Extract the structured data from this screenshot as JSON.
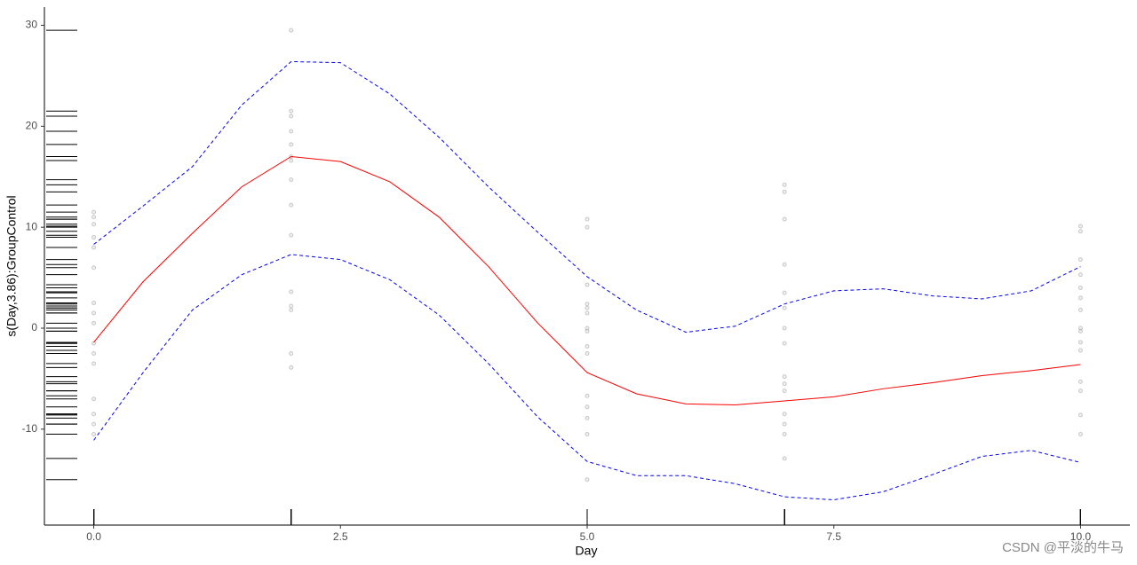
{
  "chart_data": {
    "type": "line",
    "x_label": "Day",
    "y_label": "s(Day,3.86):GroupControl",
    "watermark": "CSDN @平淡的牛马",
    "xlim": [
      -0.5,
      10.5
    ],
    "ylim": [
      -19.5,
      31.8
    ],
    "xticks": [
      {
        "value": 0,
        "label": "0.0"
      },
      2.5,
      {
        "value": 5,
        "label": "5.0"
      },
      7.5,
      {
        "value": 10,
        "label": "10.0"
      }
    ],
    "yticks": [
      -10,
      0,
      10,
      20,
      30
    ],
    "x": [
      0,
      0.5,
      1,
      1.5,
      2,
      2.5,
      3,
      3.5,
      4,
      4.5,
      5,
      5.5,
      6,
      6.5,
      7,
      7.5,
      8,
      8.5,
      9,
      9.5,
      10
    ],
    "series": [
      {
        "color": "#ff0000",
        "dashed": false,
        "values": [
          -1.4,
          4.6,
          9.4,
          14.0,
          17.0,
          16.5,
          14.5,
          11.0,
          6.1,
          0.5,
          -4.4,
          -6.5,
          -7.5,
          -7.6,
          -7.2,
          -6.8,
          -6.0,
          -5.4,
          -4.7,
          -4.2,
          -3.6
        ]
      },
      {
        "color": "#0000ff",
        "dashed": true,
        "values": [
          8.3,
          12.1,
          16.0,
          22.1,
          26.4,
          26.3,
          23.2,
          18.9,
          14.0,
          9.5,
          5.1,
          1.8,
          -0.4,
          0.2,
          2.4,
          3.7,
          3.9,
          3.2,
          2.9,
          3.7,
          6.1
        ]
      },
      {
        "color": "#0000ff",
        "dashed": true,
        "values": [
          -11.1,
          -4.4,
          1.8,
          5.3,
          7.3,
          6.8,
          4.8,
          1.3,
          -3.5,
          -8.8,
          -13.2,
          -14.6,
          -14.6,
          -15.4,
          -16.7,
          -17.0,
          -16.2,
          -14.5,
          -12.7,
          -12.1,
          -13.3
        ]
      }
    ],
    "points": {
      "color": "#999999",
      "x": [
        0,
        0,
        0,
        0,
        0,
        0,
        0,
        0,
        0,
        0,
        0,
        0,
        0,
        0,
        0,
        0,
        2,
        2,
        2,
        2,
        2,
        2,
        2,
        2,
        2,
        2,
        2,
        2,
        2,
        2,
        2,
        5,
        5,
        5,
        5,
        5,
        5,
        5,
        5,
        5,
        5,
        5,
        5,
        5,
        5,
        5,
        7,
        7,
        7,
        7,
        7,
        7,
        7,
        7,
        7,
        7,
        7,
        7,
        7,
        7,
        7,
        10,
        10,
        10,
        10,
        10,
        10,
        10,
        10,
        10,
        10,
        10,
        10,
        10,
        10,
        10
      ],
      "y": [
        11.5,
        11,
        10.3,
        9,
        8,
        6,
        2.5,
        1.5,
        0.5,
        -1.5,
        -2.5,
        -3.5,
        -7,
        -8.5,
        -9.5,
        -10.5,
        29.5,
        21.5,
        21,
        19.5,
        18.2,
        17,
        16.6,
        14.7,
        12.2,
        9.2,
        3.6,
        2.2,
        1.8,
        -2.5,
        -3.9,
        10.8,
        10,
        4.3,
        2.4,
        2,
        1.5,
        0,
        -0.3,
        -1.8,
        -2.5,
        -6.7,
        -7.8,
        -8.9,
        -10.5,
        -15,
        14.2,
        13.5,
        10.8,
        6.3,
        3.5,
        2,
        0,
        -1.5,
        -4.8,
        -5.5,
        -6.2,
        -8.5,
        -9.5,
        -10.5,
        -12.9,
        10.1,
        9.6,
        6.8,
        5.3,
        4,
        3,
        1.8,
        0,
        -0.3,
        -1.4,
        -2.2,
        -5.3,
        -6.2,
        -8.6,
        -10.5
      ]
    }
  }
}
